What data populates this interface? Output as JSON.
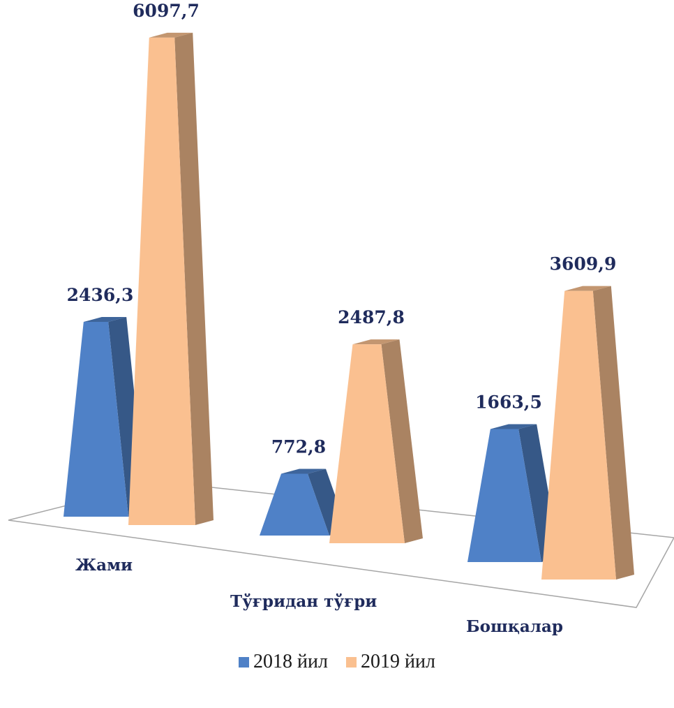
{
  "chart_data": {
    "type": "bar",
    "title": "",
    "xlabel": "",
    "ylabel": "",
    "categories": [
      "Жами",
      "Тўғридан тўғри",
      "Бошқалар"
    ],
    "series": [
      {
        "name": "2018 йил",
        "values": [
          2436.3,
          772.8,
          1663.5
        ],
        "labels": [
          "2436,3",
          "772,8",
          "1663,5"
        ],
        "color": "#4f81c7"
      },
      {
        "name": "2019 йил",
        "values": [
          6097.7,
          2487.8,
          3609.9
        ],
        "labels": [
          "6097,7",
          "2487,8",
          "3609,9"
        ],
        "color": "#fac090"
      }
    ],
    "legend_position": "bottom",
    "grid": false,
    "style": "3d-pyramid-bars"
  }
}
